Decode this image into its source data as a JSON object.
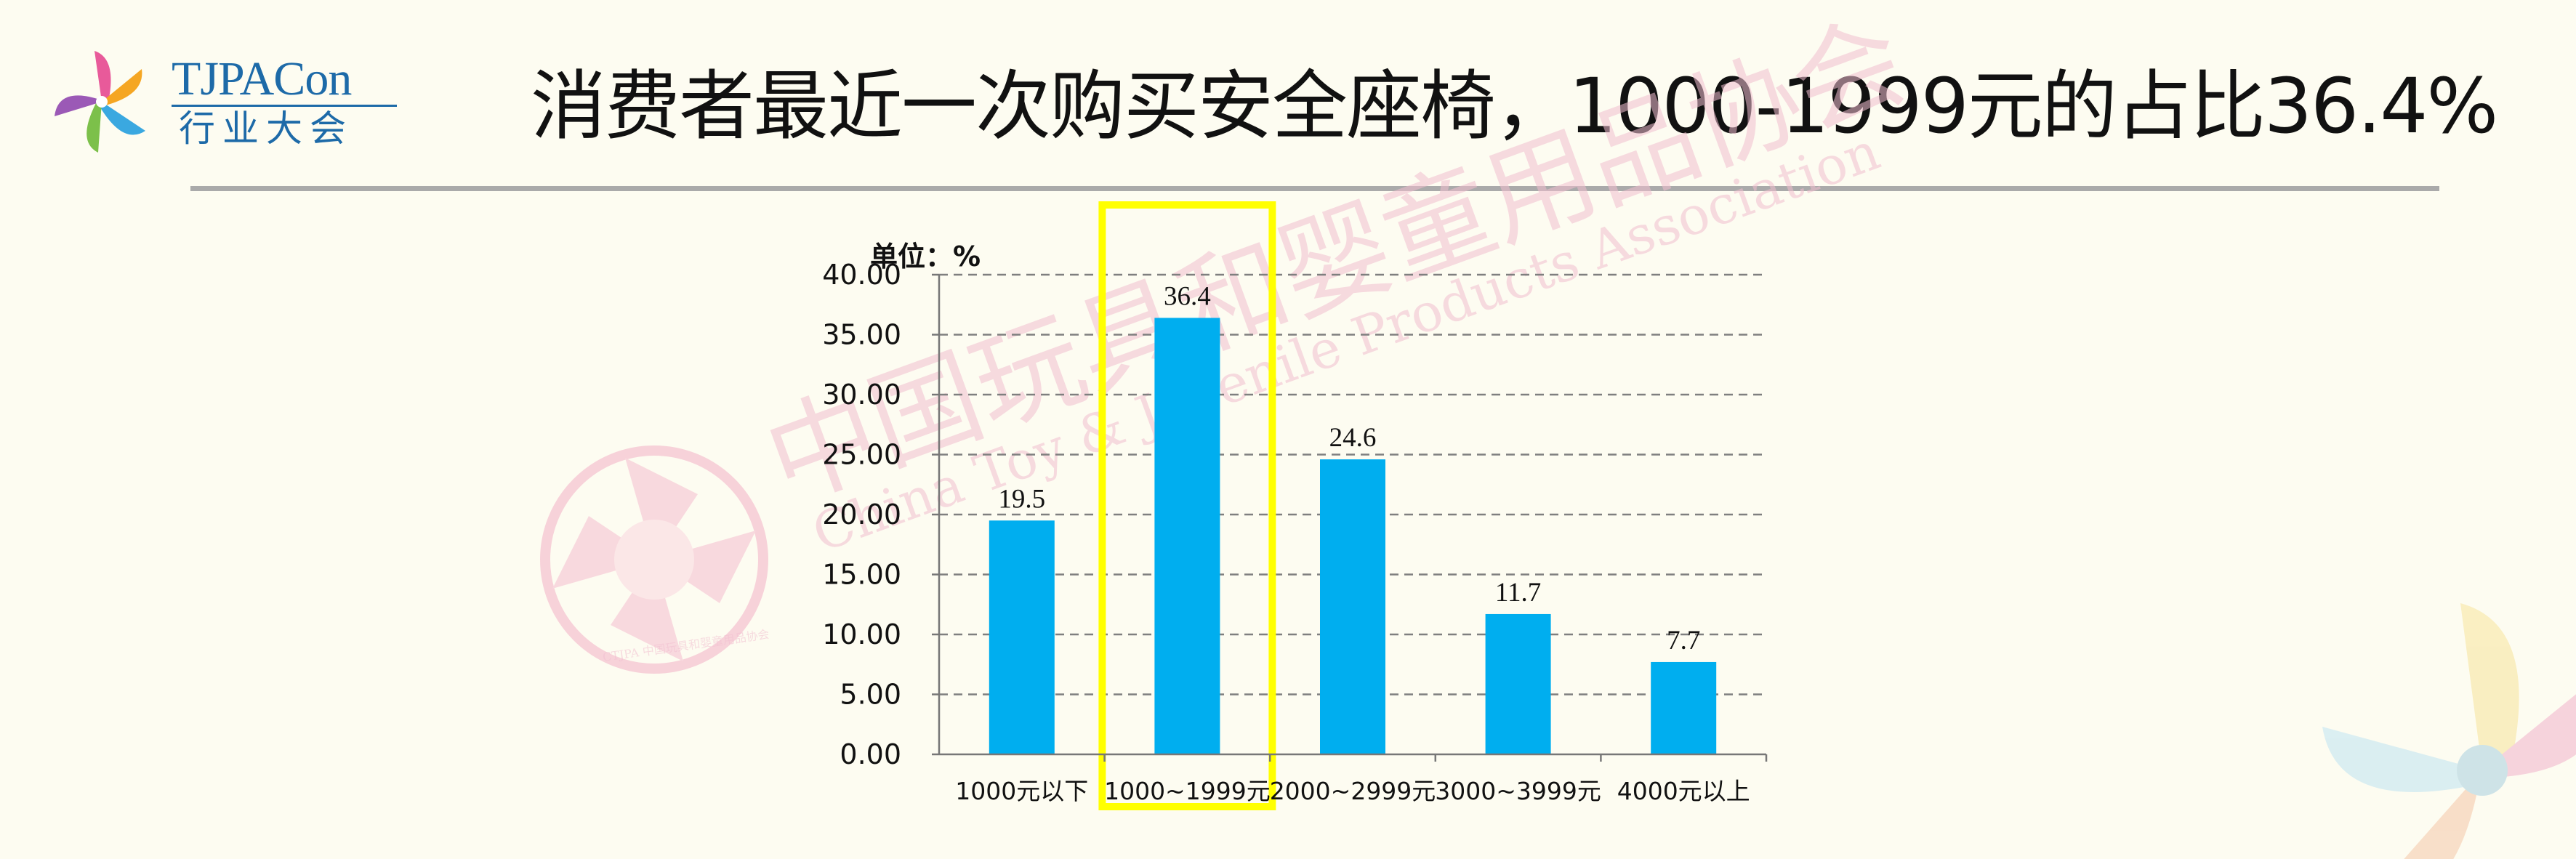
{
  "header": {
    "logo_title": "TJPACon",
    "logo_subtitle": "行业大会",
    "title": "消费者最近一次购买安全座椅，1000-1999元的占比36.4%"
  },
  "watermark": {
    "cn_text": "中国玩具和婴童用品协会",
    "en_text": "China Toy & Juvenile Products Association",
    "badge_text": "CTJPA 中国玩具和婴童用品协会"
  },
  "colors": {
    "bar": "#00aeef",
    "highlight": "#ffff00",
    "grid": "#7f7f7f"
  },
  "chart_data": {
    "type": "bar",
    "unit_label": "单位：%",
    "categories": [
      "1000元以下",
      "1000~1999元",
      "2000~2999元",
      "3000~3999元",
      "4000元以上"
    ],
    "values": [
      19.5,
      36.4,
      24.6,
      11.7,
      7.7
    ],
    "data_labels": [
      "19.5",
      "36.4",
      "24.6",
      "11.7",
      "7.7"
    ],
    "y_ticks": [
      "0.00",
      "5.00",
      "10.00",
      "15.00",
      "20.00",
      "25.00",
      "30.00",
      "35.00",
      "40.00"
    ],
    "ylim": [
      0,
      40
    ],
    "grid": true,
    "highlighted_category": "1000~1999元"
  }
}
